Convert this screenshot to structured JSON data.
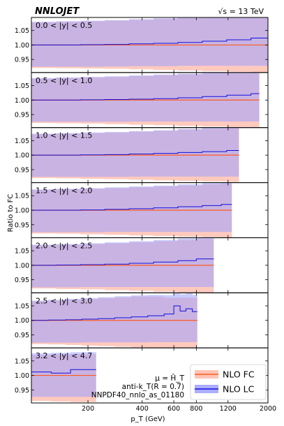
{
  "header": {
    "left": "NNLOJET",
    "right": "√s = 13 TeV"
  },
  "ylabel": "Ratio to FC",
  "xlabel": "p_T (GeV)",
  "annotations": {
    "scale": "μ = Ĥ_T",
    "jet": "anti-k_T(R = 0.7)",
    "pdf": "NNPDF40_nnlo_as_01180"
  },
  "legend": [
    {
      "label": "NLO FC",
      "line_color": "#ff5a1f",
      "fill_color": "#ffb8a8"
    },
    {
      "label": "NLO LC",
      "line_color": "#1010dd",
      "fill_color": "#9da0ff"
    }
  ],
  "colors": {
    "fc_line": "#ff5a1f",
    "fc_band": "#ffb8a8",
    "lc_line": "#1010dd",
    "lc_band": "#9da0ff"
  },
  "chart_data": {
    "type": "line",
    "x_scale": "log",
    "xlim": [
      97,
      2000
    ],
    "x_ticks": [
      200,
      400,
      600,
      800,
      1200,
      2000
    ],
    "ylim": [
      0.905,
      1.095
    ],
    "y_ticks": [
      0.95,
      1.0,
      1.05
    ],
    "y_tick_labels": [
      "0.95",
      "1.00",
      "1.05"
    ],
    "panels": [
      {
        "label": "0.0 < |y| < 0.5",
        "x_edges": [
          97,
          133,
          182,
          248,
          339,
          463,
          632,
          863,
          1180,
          1610,
          2000
        ],
        "lc_center": [
          1.0,
          1.0,
          1.001,
          1.002,
          1.004,
          1.006,
          1.009,
          1.013,
          1.018,
          1.024
        ],
        "lc_up": [
          1.08,
          1.082,
          1.084,
          1.086,
          1.089,
          1.092,
          1.096,
          1.1,
          1.104,
          1.108
        ],
        "lc_down": [
          0.925,
          0.925,
          0.925,
          0.926,
          0.927,
          0.927,
          0.928,
          0.928,
          0.928,
          0.928
        ],
        "fc_up": [
          1.078,
          1.08,
          1.082,
          1.084,
          1.087,
          1.09,
          1.093,
          1.096,
          1.1,
          1.104
        ],
        "fc_down": [
          0.921,
          0.92,
          0.919,
          0.918,
          0.916,
          0.914,
          0.912,
          0.91,
          0.908,
          0.906
        ]
      },
      {
        "label": "0.5 < |y| < 1.0",
        "x_edges": [
          97,
          133,
          182,
          248,
          339,
          463,
          632,
          863,
          1180,
          1610,
          1790
        ],
        "lc_center": [
          1.0,
          1.0,
          1.001,
          1.002,
          1.003,
          1.005,
          1.008,
          1.012,
          1.017,
          1.022
        ],
        "lc_up": [
          1.076,
          1.078,
          1.08,
          1.082,
          1.085,
          1.088,
          1.091,
          1.095,
          1.099,
          1.103
        ],
        "lc_down": [
          0.925,
          0.925,
          0.925,
          0.925,
          0.926,
          0.926,
          0.926,
          0.926,
          0.926,
          0.926
        ],
        "fc_up": [
          1.074,
          1.076,
          1.078,
          1.08,
          1.083,
          1.086,
          1.089,
          1.092,
          1.096,
          1.099
        ],
        "fc_down": [
          0.921,
          0.92,
          0.919,
          0.917,
          0.915,
          0.913,
          0.911,
          0.909,
          0.907,
          0.905
        ]
      },
      {
        "label": "1.0 < |y| < 1.5",
        "x_edges": [
          97,
          133,
          182,
          248,
          339,
          463,
          632,
          863,
          1180,
          1380
        ],
        "lc_center": [
          1.0,
          1.0,
          1.001,
          1.002,
          1.004,
          1.006,
          1.009,
          1.012,
          1.016
        ],
        "lc_up": [
          1.074,
          1.076,
          1.078,
          1.08,
          1.083,
          1.086,
          1.09,
          1.094,
          1.098
        ],
        "lc_down": [
          0.925,
          0.925,
          0.925,
          0.925,
          0.926,
          0.926,
          0.926,
          0.926,
          0.926
        ],
        "fc_up": [
          1.072,
          1.074,
          1.076,
          1.078,
          1.081,
          1.084,
          1.088,
          1.091,
          1.095
        ],
        "fc_down": [
          0.921,
          0.92,
          0.918,
          0.917,
          0.915,
          0.913,
          0.911,
          0.909,
          0.907
        ]
      },
      {
        "label": "1.5 < |y| < 2.0",
        "x_edges": [
          97,
          133,
          182,
          248,
          339,
          463,
          632,
          863,
          1100,
          1260
        ],
        "lc_center": [
          1.0,
          1.0,
          1.001,
          1.003,
          1.005,
          1.008,
          1.012,
          1.016,
          1.02
        ],
        "lc_up": [
          1.072,
          1.074,
          1.076,
          1.079,
          1.082,
          1.085,
          1.089,
          1.093,
          1.097
        ],
        "lc_down": [
          0.924,
          0.924,
          0.924,
          0.925,
          0.925,
          0.925,
          0.925,
          0.925,
          0.925
        ],
        "fc_up": [
          1.07,
          1.072,
          1.074,
          1.076,
          1.079,
          1.082,
          1.085,
          1.089,
          1.092
        ],
        "fc_down": [
          0.92,
          0.919,
          0.917,
          0.915,
          0.913,
          0.911,
          0.909,
          0.907,
          0.905
        ]
      },
      {
        "label": "2.0 < |y| < 2.5",
        "x_edges": [
          97,
          133,
          182,
          248,
          339,
          463,
          632,
          800,
          1000
        ],
        "lc_center": [
          1.0,
          1.001,
          1.002,
          1.004,
          1.007,
          1.011,
          1.016,
          1.022
        ],
        "lc_up": [
          1.071,
          1.073,
          1.076,
          1.079,
          1.083,
          1.087,
          1.092,
          1.098
        ],
        "lc_down": [
          0.924,
          0.924,
          0.925,
          0.925,
          0.925,
          0.925,
          0.925,
          0.925
        ],
        "fc_up": [
          1.069,
          1.071,
          1.073,
          1.076,
          1.079,
          1.083,
          1.087,
          1.091
        ],
        "fc_down": [
          0.92,
          0.918,
          0.917,
          0.914,
          0.912,
          0.909,
          0.907,
          0.905
        ]
      },
      {
        "label": "2.5 < |y| < 3.0",
        "x_edges": [
          97,
          120,
          150,
          185,
          228,
          282,
          348,
          430,
          530,
          600,
          650,
          700,
          760,
          810
        ],
        "lc_center": [
          1.0,
          1.001,
          1.002,
          1.004,
          1.006,
          1.009,
          1.012,
          1.016,
          1.022,
          1.05,
          1.032,
          1.04,
          1.03
        ],
        "lc_up": [
          1.068,
          1.071,
          1.074,
          1.077,
          1.08,
          1.083,
          1.086,
          1.088,
          1.087,
          1.095,
          1.09,
          1.094,
          1.088
        ],
        "lc_down": [
          0.923,
          0.923,
          0.923,
          0.924,
          0.924,
          0.924,
          0.924,
          0.925,
          0.925,
          0.925,
          0.925,
          0.925,
          0.925
        ],
        "fc_up": [
          1.066,
          1.068,
          1.071,
          1.073,
          1.076,
          1.079,
          1.082,
          1.082,
          1.078,
          1.078,
          1.078,
          1.078,
          1.078
        ],
        "fc_down": [
          0.918,
          0.917,
          0.915,
          0.913,
          0.911,
          0.909,
          0.907,
          0.905,
          0.905,
          0.905,
          0.905,
          0.905,
          0.905
        ]
      },
      {
        "label": "3.2 < |y| < 4.7",
        "x_edges": [
          97,
          125,
          160,
          222
        ],
        "lc_center": [
          1.012,
          1.008,
          1.02
        ],
        "lc_up": [
          1.076,
          1.078,
          1.08
        ],
        "lc_down": [
          0.926,
          0.926,
          0.926
        ],
        "fc_up": [
          1.07,
          1.072,
          1.074
        ],
        "fc_down": [
          0.912,
          0.91,
          0.908
        ]
      }
    ]
  }
}
